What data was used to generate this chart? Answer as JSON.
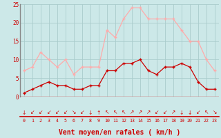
{
  "hours": [
    0,
    1,
    2,
    3,
    4,
    5,
    6,
    7,
    8,
    9,
    10,
    11,
    12,
    13,
    14,
    15,
    16,
    17,
    18,
    19,
    20,
    21,
    22,
    23
  ],
  "vent_moyen": [
    1,
    2,
    3,
    4,
    3,
    3,
    2,
    2,
    3,
    3,
    7,
    7,
    9,
    9,
    10,
    7,
    6,
    8,
    8,
    9,
    8,
    4,
    2,
    2
  ],
  "rafales": [
    7,
    8,
    12,
    10,
    8,
    10,
    6,
    8,
    8,
    8,
    18,
    16,
    21,
    24,
    24,
    21,
    21,
    21,
    21,
    18,
    15,
    15,
    10,
    7
  ],
  "color_moyen": "#cc0000",
  "color_rafales": "#ffaaaa",
  "bg_color": "#cce8e8",
  "grid_color": "#aacccc",
  "xlabel": "Vent moyen/en rafales ( km/h )",
  "ylim": [
    0,
    25
  ],
  "yticks": [
    0,
    5,
    10,
    15,
    20,
    25
  ],
  "xticks": [
    0,
    1,
    2,
    3,
    4,
    5,
    6,
    7,
    8,
    9,
    10,
    11,
    12,
    13,
    14,
    15,
    16,
    17,
    18,
    19,
    20,
    21,
    22,
    23
  ],
  "wind_arrows": [
    "↓",
    "↙",
    "↙",
    "↙",
    "↙",
    "↙",
    "↘",
    "↙",
    "↓",
    "↑",
    "↖",
    "↖",
    "↖",
    "↗",
    "↗",
    "↗",
    "↙",
    "↙",
    "↗",
    "↓",
    "↓",
    "↙",
    "↖",
    "↘"
  ]
}
